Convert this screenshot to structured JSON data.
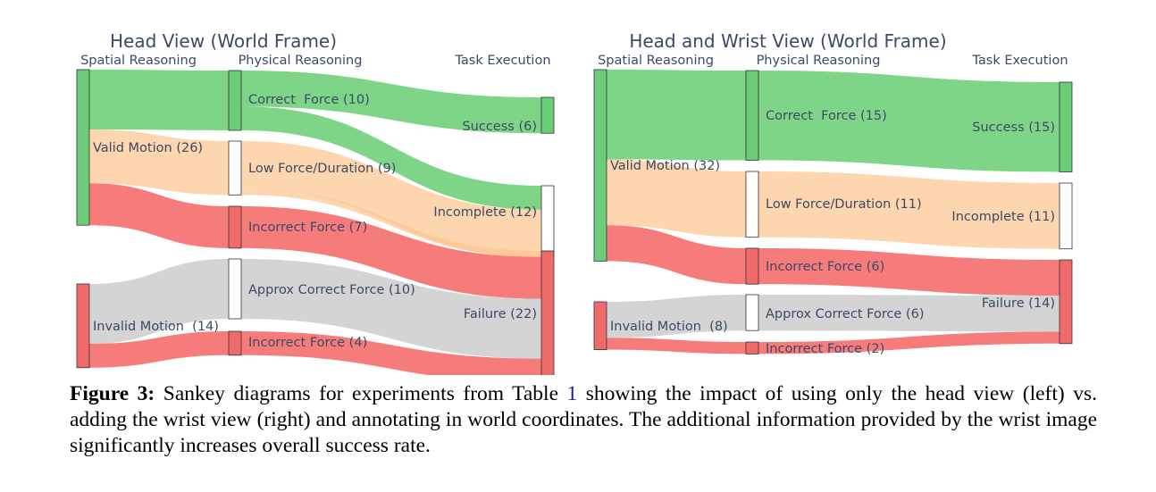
{
  "diagrams": [
    {
      "title": "Head View (World Frame)",
      "stages": [
        "Spatial Reasoning",
        "Physical Reasoning",
        "Task Execution"
      ],
      "nodes": {
        "valid": "Valid Motion (26)",
        "invalid": "Invalid Motion  (14)",
        "correct": "Correct  Force (10)",
        "low": "Low Force/Duration (9)",
        "incorrect1": "Incorrect Force (7)",
        "approx": "Approx Correct Force (10)",
        "incorrect2": "Incorrect Force (4)",
        "success": "Success (6)",
        "incomplete": "Incomplete (12)",
        "failure": "Failure (22)"
      },
      "links": [
        {
          "source": "valid",
          "target": "correct",
          "value": 10,
          "kind": "green"
        },
        {
          "source": "valid",
          "target": "low",
          "value": 9,
          "kind": "orange"
        },
        {
          "source": "valid",
          "target": "incorrect1",
          "value": 7,
          "kind": "red"
        },
        {
          "source": "invalid",
          "target": "approx",
          "value": 10,
          "kind": "gray"
        },
        {
          "source": "invalid",
          "target": "incorrect2",
          "value": 4,
          "kind": "red"
        },
        {
          "source": "correct",
          "target": "success",
          "value": 6,
          "kind": "green"
        },
        {
          "source": "correct",
          "target": "incomplete",
          "value": 4,
          "kind": "green"
        },
        {
          "source": "low",
          "target": "incomplete",
          "value": 8,
          "kind": "orange"
        },
        {
          "source": "low",
          "target": "failure",
          "value": 1,
          "kind": "orange"
        },
        {
          "source": "incorrect1",
          "target": "failure",
          "value": 7,
          "kind": "red"
        },
        {
          "source": "approx",
          "target": "failure",
          "value": 10,
          "kind": "gray"
        },
        {
          "source": "incorrect2",
          "target": "failure",
          "value": 4,
          "kind": "red"
        }
      ]
    },
    {
      "title": "Head and Wrist View (World Frame)",
      "stages": [
        "Spatial Reasoning",
        "Physical Reasoning",
        "Task Execution"
      ],
      "nodes": {
        "valid": "Valid Motion (32)",
        "invalid": "Invalid Motion  (8)",
        "correct": "Correct  Force (15)",
        "low": "Low Force/Duration (11)",
        "incorrect1": "Incorrect Force (6)",
        "approx": "Approx Correct Force (6)",
        "incorrect2": "Incorrect Force (2)",
        "success": "Success (15)",
        "incomplete": "Incomplete (11)",
        "failure": "Failure (14)"
      },
      "links": [
        {
          "source": "valid",
          "target": "correct",
          "value": 15,
          "kind": "green"
        },
        {
          "source": "valid",
          "target": "low",
          "value": 11,
          "kind": "orange"
        },
        {
          "source": "valid",
          "target": "incorrect1",
          "value": 6,
          "kind": "red"
        },
        {
          "source": "invalid",
          "target": "approx",
          "value": 6,
          "kind": "gray"
        },
        {
          "source": "invalid",
          "target": "incorrect2",
          "value": 2,
          "kind": "red"
        },
        {
          "source": "correct",
          "target": "success",
          "value": 15,
          "kind": "green"
        },
        {
          "source": "low",
          "target": "incomplete",
          "value": 11,
          "kind": "orange"
        },
        {
          "source": "incorrect1",
          "target": "failure",
          "value": 6,
          "kind": "red"
        },
        {
          "source": "approx",
          "target": "failure",
          "value": 6,
          "kind": "gray"
        },
        {
          "source": "incorrect2",
          "target": "failure",
          "value": 2,
          "kind": "red"
        }
      ]
    }
  ],
  "colors": {
    "green": "#4cc55a",
    "orange": "#fcc58f",
    "red": "#f24a4a",
    "gray": "#c4c4c4",
    "node_green": "#6ccc7a",
    "node_red": "#ef6a6a",
    "node_neutral": "#ffffff",
    "text": "#3b4a66"
  },
  "caption": {
    "label": "Figure 3:",
    "text_1": " Sankey diagrams for experiments from Table ",
    "table_ref": "1",
    "text_2": " showing the impact of using only the head view (left) vs. adding the wrist view (right) and annotating in world coordinates. The additional information provided by the wrist image significantly increases overall success rate."
  }
}
